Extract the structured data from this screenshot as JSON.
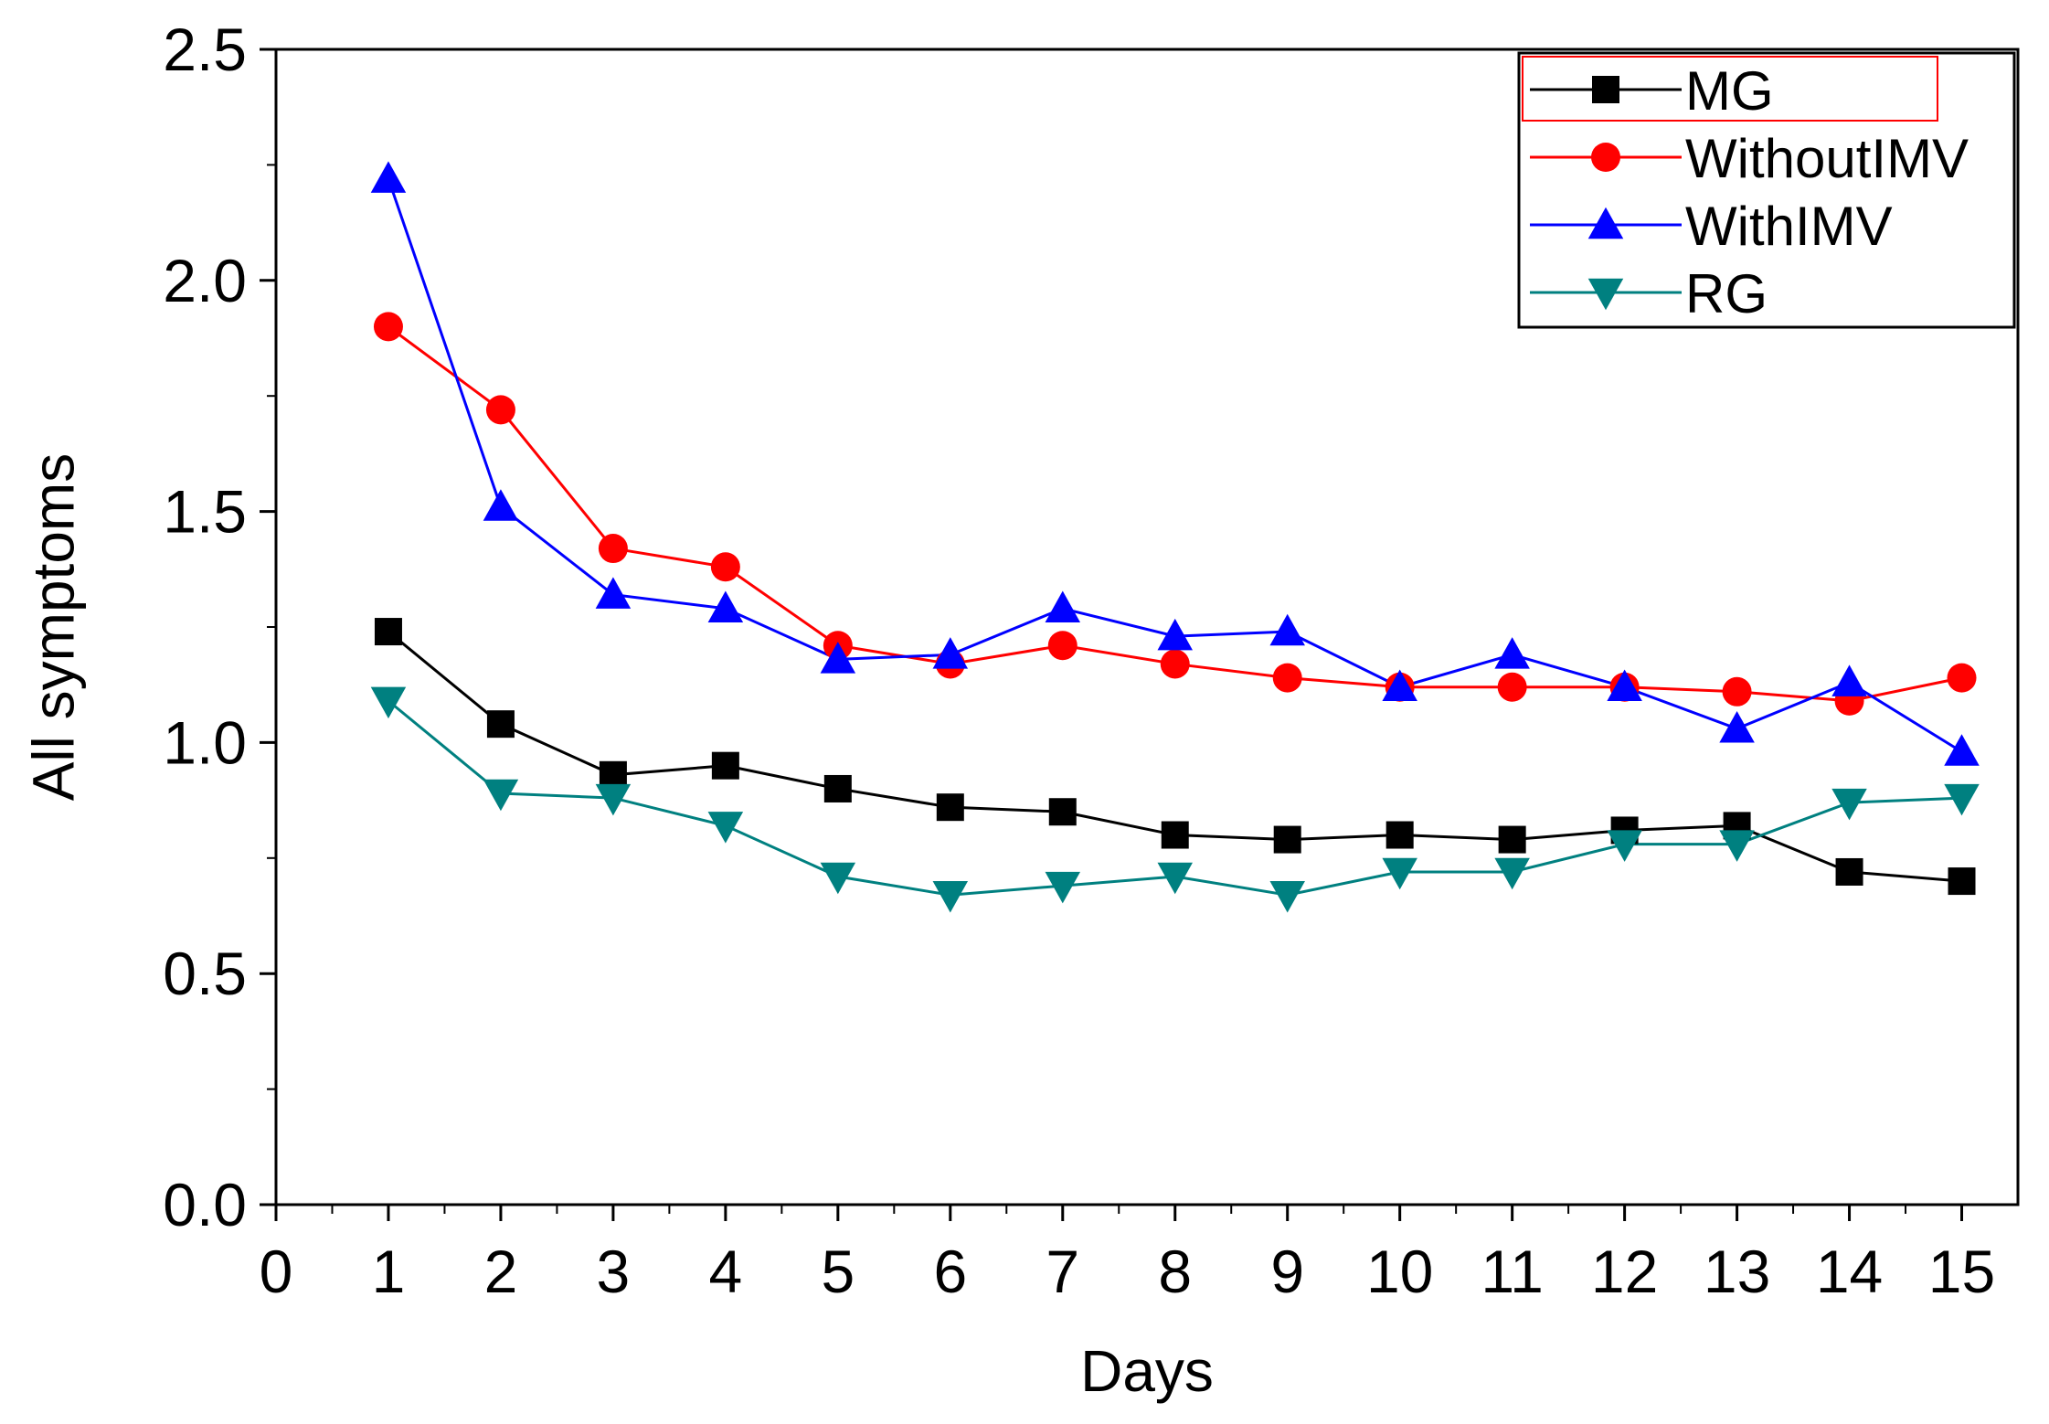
{
  "chart_data": {
    "type": "line",
    "title": "",
    "xlabel": "Days",
    "ylabel": "All symptoms",
    "xlim": [
      0,
      15.5
    ],
    "ylim": [
      0,
      2.5
    ],
    "x_ticks": [
      "0",
      "1",
      "2",
      "3",
      "4",
      "5",
      "6",
      "7",
      "8",
      "9",
      "10",
      "11",
      "12",
      "13",
      "14",
      "15"
    ],
    "y_ticks": [
      "0.0",
      "0.5",
      "1.0",
      "1.5",
      "2.0",
      "2.5"
    ],
    "grid": false,
    "legend_position": "top-right",
    "x": [
      1,
      2,
      3,
      4,
      5,
      6,
      7,
      8,
      9,
      10,
      11,
      12,
      13,
      14,
      15
    ],
    "series": [
      {
        "name": "MG",
        "marker": "square",
        "color": "#000000",
        "values": [
          1.24,
          1.04,
          0.93,
          0.95,
          0.9,
          0.86,
          0.85,
          0.8,
          0.79,
          0.8,
          0.79,
          0.81,
          0.82,
          0.72,
          0.7
        ]
      },
      {
        "name": "WithoutIMV",
        "marker": "circle",
        "color": "#ff0000",
        "values": [
          1.9,
          1.72,
          1.42,
          1.38,
          1.21,
          1.17,
          1.21,
          1.17,
          1.14,
          1.12,
          1.12,
          1.12,
          1.11,
          1.09,
          1.14
        ]
      },
      {
        "name": "WithIMV",
        "marker": "triangle-up",
        "color": "#0000ff",
        "values": [
          2.22,
          1.51,
          1.32,
          1.29,
          1.18,
          1.19,
          1.29,
          1.23,
          1.24,
          1.12,
          1.19,
          1.12,
          1.03,
          1.13,
          0.98
        ]
      },
      {
        "name": "RG",
        "marker": "triangle-down",
        "color": "#008080",
        "values": [
          1.09,
          0.89,
          0.88,
          0.82,
          0.71,
          0.67,
          0.69,
          0.71,
          0.67,
          0.72,
          0.72,
          0.78,
          0.78,
          0.87,
          0.88
        ]
      }
    ]
  }
}
